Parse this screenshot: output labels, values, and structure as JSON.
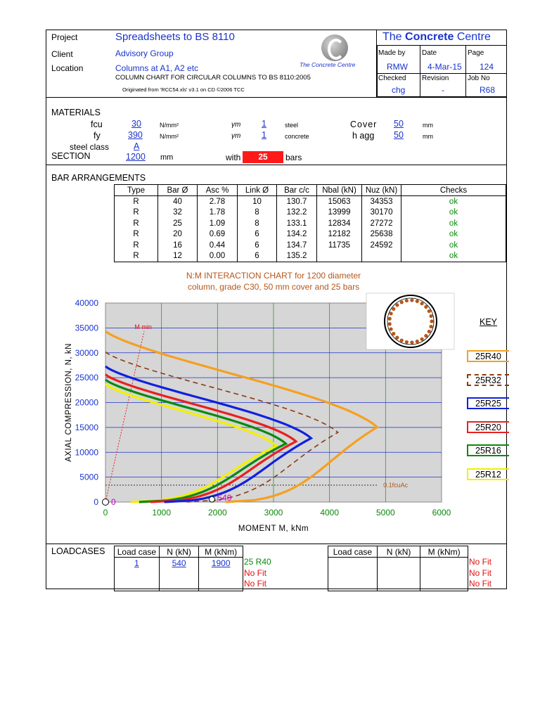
{
  "header": {
    "project_label": "Project",
    "project_value": "Spreadsheets to BS 8110",
    "client_label": "Client",
    "client_value": "Advisory Group",
    "location_label": "Location",
    "location_value": "Columns  at A1, A2 etc",
    "subtitle": "COLUMN CHART FOR  CIRCULAR COLUMNS TO BS 8110:2005",
    "originated": "Originated from 'RCC54.xls'  v3.1 on CD          ©2006 TCC",
    "logo_text": "The Concrete Centre",
    "title_right": "The Concrete Centre",
    "made_by_label": "Made by",
    "made_by": "RMW",
    "date_label": "Date",
    "date": "4-Mar-15",
    "page_label": "Page",
    "page": "124",
    "checked_label": "Checked",
    "checked": "chg",
    "revision_label": "Revision",
    "revision": "-",
    "job_label": "Job No",
    "job": "R68"
  },
  "materials": {
    "heading": "MATERIALS",
    "fcu_label": "fcu",
    "fcu": "30",
    "fy_label": "fy",
    "fy": "390",
    "unit": "N/mm²",
    "gm_label": "γm",
    "gm1": "1",
    "gm1_for": "steel",
    "gm2": "1",
    "gm2_for": "concrete",
    "cover_label": "Cover",
    "cover": "50",
    "hagg_label": "h agg",
    "hagg": "50",
    "mm": "mm",
    "steel_class_label": "steel class",
    "steel_class": "A",
    "section_label": "SECTION",
    "section": "1200",
    "section_unit": "mm",
    "with_label": "with",
    "bars": "25",
    "bars_label": "bars"
  },
  "bar_arrangements": {
    "heading": "BAR ARRANGEMENTS",
    "columns": [
      "Type",
      "Bar Ø",
      "Asc %",
      "Link Ø",
      "Bar c/c",
      "Nbal (kN)",
      "Nuz (kN)",
      "Checks"
    ],
    "rows": [
      [
        "R",
        "40",
        "2.78",
        "10",
        "130.7",
        "15063",
        "34353",
        "ok"
      ],
      [
        "R",
        "32",
        "1.78",
        "8",
        "132.2",
        "13999",
        "30170",
        "ok"
      ],
      [
        "R",
        "25",
        "1.09",
        "8",
        "133.1",
        "12834",
        "27272",
        "ok"
      ],
      [
        "R",
        "20",
        "0.69",
        "6",
        "134.2",
        "12182",
        "25638",
        "ok"
      ],
      [
        "R",
        "16",
        "0.44",
        "6",
        "134.7",
        "11735",
        "24592",
        "ok"
      ],
      [
        "R",
        "12",
        "0.00",
        "6",
        "135.2",
        "",
        "",
        "ok"
      ]
    ]
  },
  "chart_data": {
    "type": "line",
    "title_line1": "N:M INTERACTION CHART for 1200 diameter",
    "title_line2": "column, grade C30, 50 mm cover and 25 bars",
    "xlabel": "MOMENT M, kNm",
    "ylabel": "AXIAL COMPRESSION, N, kN",
    "xlim": [
      0,
      6000
    ],
    "ylim": [
      0,
      40000
    ],
    "xticks": [
      "0",
      "1000",
      "2000",
      "3000",
      "4000",
      "5000",
      "6000"
    ],
    "yticks": [
      "0",
      "5000",
      "10000",
      "15000",
      "20000",
      "25000",
      "30000",
      "35000",
      "40000"
    ],
    "grid": true,
    "mmin_label": "M min",
    "mmin_line": [
      [
        0,
        0
      ],
      [
        690,
        34353
      ]
    ],
    "ref_line_label": "0.1fcuAc",
    "ref_line_value": 3393,
    "point_zero_label": "0",
    "load_point": {
      "m": 1900,
      "n": 540,
      "label": "540"
    },
    "key_title": "KEY",
    "series": [
      {
        "name": "25R40",
        "color": "#f5a020",
        "dashed": false,
        "nuz": 34353,
        "m_max": 4850,
        "n_at_mmax": 15063,
        "m_at_zero": 2150
      },
      {
        "name": "25R32",
        "color": "#8b3a10",
        "dashed": true,
        "nuz": 30170,
        "m_max": 4150,
        "n_at_mmax": 13999,
        "m_at_zero": 1450
      },
      {
        "name": "25R25",
        "color": "#1020e0",
        "dashed": false,
        "nuz": 27272,
        "m_max": 3670,
        "n_at_mmax": 12834,
        "m_at_zero": 1050
      },
      {
        "name": "25R20",
        "color": "#e82020",
        "dashed": false,
        "nuz": 25638,
        "m_max": 3400,
        "n_at_mmax": 12182,
        "m_at_zero": 800
      },
      {
        "name": "25R16",
        "color": "#0a8a0a",
        "dashed": false,
        "nuz": 24592,
        "m_max": 3220,
        "n_at_mmax": 11735,
        "m_at_zero": 600
      },
      {
        "name": "25R12",
        "color": "#f2f000",
        "dashed": false,
        "nuz": 23700,
        "m_max": 3050,
        "n_at_mmax": 11300,
        "m_at_zero": 450
      }
    ]
  },
  "loadcases": {
    "heading": "LOADCASES",
    "columns": [
      "Load case",
      "N (kN)",
      "M (kNm)"
    ],
    "left_rows": [
      [
        "1",
        "540",
        "1900"
      ],
      [
        "",
        "",
        ""
      ],
      [
        "",
        "",
        ""
      ]
    ],
    "left_results": [
      "25 R40",
      "No Fit",
      "No Fit"
    ],
    "right_rows": [
      [
        "",
        "",
        ""
      ],
      [
        "",
        "",
        ""
      ],
      [
        "",
        "",
        ""
      ]
    ],
    "right_results": [
      "No Fit",
      "No Fit",
      "No Fit"
    ]
  },
  "colors": {
    "link_blue": "#1a33cc",
    "ok_green": "#0a8a0a",
    "nofit_red": "#e01010",
    "bars_fill": "#ff1a1a"
  }
}
